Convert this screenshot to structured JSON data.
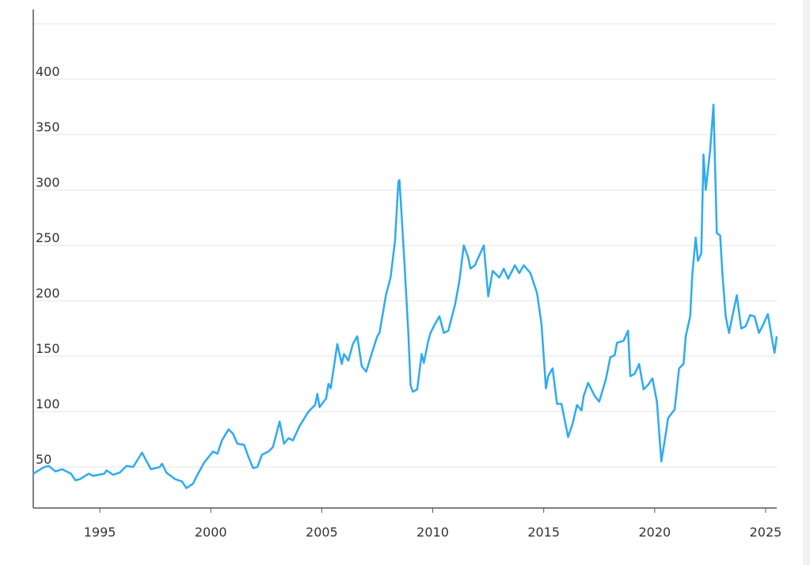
{
  "chart_data": {
    "type": "line",
    "x": [
      1992.0,
      1992.5,
      1992.7,
      1993.0,
      1993.3,
      1993.7,
      1993.9,
      1994.1,
      1994.5,
      1994.7,
      1995.2,
      1995.3,
      1995.6,
      1995.9,
      1996.2,
      1996.5,
      1996.9,
      1997.3,
      1997.7,
      1997.8,
      1998.0,
      1998.4,
      1998.7,
      1998.9,
      1999.2,
      1999.4,
      1999.7,
      2000.1,
      2000.3,
      2000.5,
      2000.8,
      2001.0,
      2001.2,
      2001.5,
      2001.7,
      2001.9,
      2002.1,
      2002.3,
      2002.6,
      2002.8,
      2003.1,
      2003.3,
      2003.5,
      2003.7,
      2004.0,
      2004.4,
      2004.7,
      2004.8,
      2004.9,
      2005.2,
      2005.3,
      2005.4,
      2005.7,
      2005.9,
      2006.0,
      2006.2,
      2006.4,
      2006.6,
      2006.8,
      2007.0,
      2007.2,
      2007.5,
      2007.6,
      2007.9,
      2008.1,
      2008.3,
      2008.45,
      2008.5,
      2008.7,
      2008.9,
      2009.0,
      2009.1,
      2009.3,
      2009.5,
      2009.6,
      2009.8,
      2009.9,
      2010.1,
      2010.3,
      2010.5,
      2010.7,
      2011.0,
      2011.2,
      2011.4,
      2011.6,
      2011.7,
      2011.9,
      2012.1,
      2012.3,
      2012.5,
      2012.7,
      2013.0,
      2013.2,
      2013.4,
      2013.7,
      2013.9,
      2014.1,
      2014.4,
      2014.7,
      2014.9,
      2015.1,
      2015.2,
      2015.4,
      2015.6,
      2015.8,
      2016.1,
      2016.3,
      2016.5,
      2016.7,
      2016.8,
      2017.0,
      2017.3,
      2017.5,
      2017.8,
      2018.0,
      2018.2,
      2018.3,
      2018.6,
      2018.8,
      2018.9,
      2019.1,
      2019.3,
      2019.5,
      2019.7,
      2019.9,
      2020.1,
      2020.3,
      2020.5,
      2020.6,
      2020.9,
      2021.1,
      2021.3,
      2021.4,
      2021.6,
      2021.7,
      2021.85,
      2021.95,
      2022.1,
      2022.2,
      2022.3,
      2022.5,
      2022.65,
      2022.8,
      2022.95,
      2023.05,
      2023.2,
      2023.35,
      2023.5,
      2023.7,
      2023.9,
      2024.1,
      2024.3,
      2024.5,
      2024.7,
      2024.9,
      2025.1,
      2025.3,
      2025.4,
      2025.5
    ],
    "series": [
      {
        "color": "#2eaaf2",
        "values": [
          44,
          50,
          51,
          46,
          48,
          44,
          38,
          39,
          44,
          42,
          44,
          47,
          43,
          45,
          51,
          50,
          63,
          48,
          50,
          53,
          45,
          39,
          37,
          31,
          35,
          43,
          54,
          64,
          62,
          74,
          84,
          80,
          71,
          70,
          59,
          49,
          50,
          61,
          64,
          68,
          91,
          71,
          76,
          74,
          87,
          100,
          106,
          116,
          104,
          112,
          125,
          121,
          161,
          143,
          152,
          146,
          161,
          168,
          141,
          136,
          149,
          168,
          171,
          206,
          221,
          254,
          307,
          309,
          243,
          171,
          124,
          118,
          120,
          152,
          144,
          164,
          171,
          179,
          186,
          171,
          173,
          196,
          218,
          250,
          239,
          229,
          232,
          241,
          250,
          204,
          227,
          221,
          229,
          220,
          232,
          225,
          232,
          225,
          207,
          179,
          121,
          132,
          139,
          107,
          107,
          77,
          89,
          106,
          101,
          114,
          126,
          114,
          109,
          129,
          149,
          151,
          162,
          164,
          173,
          132,
          134,
          143,
          120,
          124,
          130,
          109,
          55,
          80,
          94,
          102,
          139,
          143,
          168,
          186,
          225,
          257,
          236,
          243,
          332,
          300,
          336,
          377,
          261,
          259,
          225,
          186,
          171,
          186,
          205,
          175,
          177,
          187,
          186,
          171,
          179,
          188,
          164,
          153,
          168
        ]
      }
    ],
    "xlim": [
      1992.0,
      2025.5
    ],
    "xticks": [
      1995,
      2000,
      2005,
      2010,
      2015,
      2020,
      2025
    ],
    "ylim": [
      13,
      450
    ],
    "yticks": [
      50,
      100,
      150,
      200,
      250,
      300,
      350,
      400
    ],
    "grid": true
  }
}
